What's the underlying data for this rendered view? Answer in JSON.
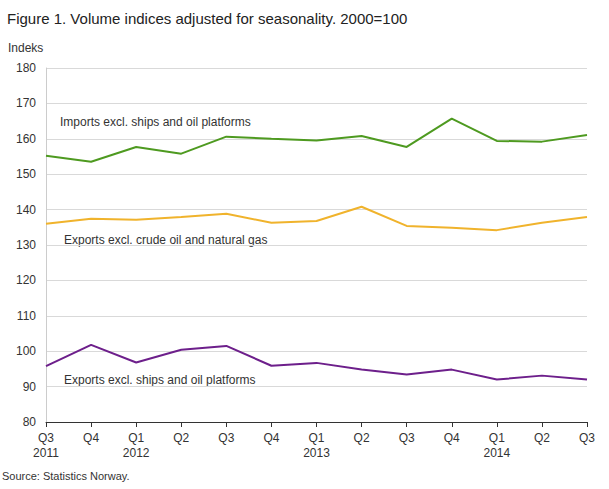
{
  "chart_data": {
    "type": "line",
    "title": "Figure 1. Volume indices adjusted for seasonality. 2000=100",
    "y_label": "Indeks",
    "source": "Source: Statistics Norway.",
    "categories": [
      "Q3\n2011",
      "Q4",
      "Q1\n2012",
      "Q2",
      "Q3",
      "Q4",
      "Q1\n2013",
      "Q2",
      "Q3",
      "Q4",
      "Q1\n2014",
      "Q2",
      "Q3"
    ],
    "series": [
      {
        "name": "Imports excl. ships and oil platforms",
        "color": "#4e9a20",
        "values": [
          155.2,
          153.5,
          157.7,
          155.8,
          160.6,
          160.0,
          159.5,
          160.8,
          157.7,
          165.7,
          159.4,
          159.2,
          161.1
        ]
      },
      {
        "name": "Exports excl. crude oil and natural gas",
        "color": "#f0b32c",
        "values": [
          136.0,
          137.4,
          137.1,
          137.9,
          138.8,
          136.3,
          136.8,
          140.8,
          135.4,
          134.9,
          134.2,
          136.3,
          137.9
        ]
      },
      {
        "name": "Exports excl. ships and oil platforms",
        "color": "#6d1f8b",
        "values": [
          95.8,
          101.8,
          96.8,
          100.4,
          101.5,
          95.9,
          96.7,
          94.8,
          93.4,
          94.8,
          92.0,
          93.1,
          92.0
        ]
      }
    ],
    "ylim": [
      80,
      180
    ],
    "yticks": [
      80,
      90,
      100,
      110,
      120,
      130,
      140,
      150,
      160,
      170,
      180
    ],
    "grid": true
  }
}
